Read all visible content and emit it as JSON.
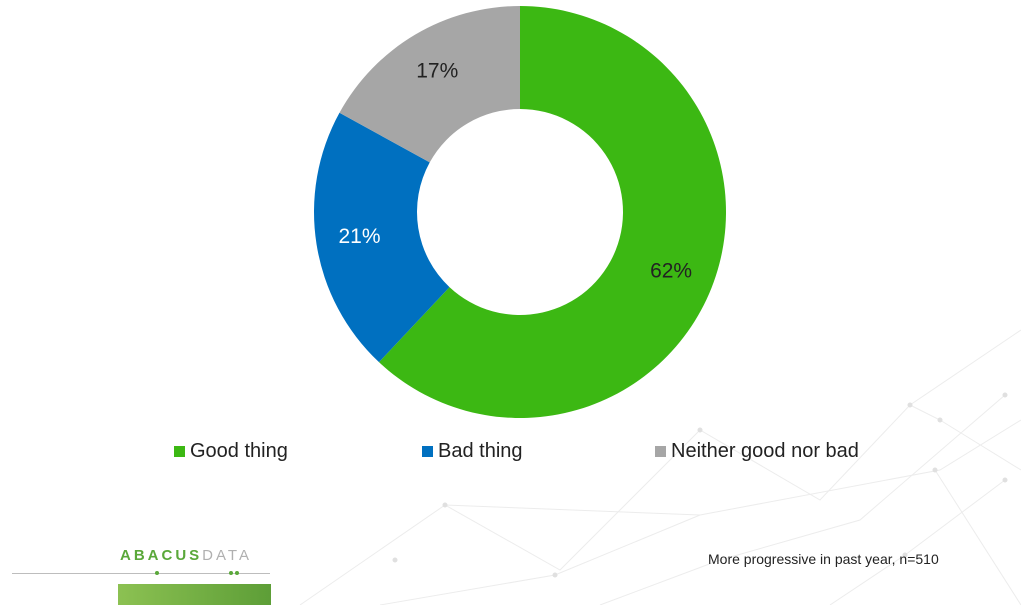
{
  "chart_data": {
    "type": "pie",
    "style": "donut",
    "categories": [
      "Good thing",
      "Bad thing",
      "Neither good nor bad"
    ],
    "values": [
      62,
      21,
      17
    ],
    "labels": [
      "62%",
      "21%",
      "17%"
    ],
    "colors": [
      "#3cb813",
      "#0070c0",
      "#a6a6a6"
    ],
    "label_colors": [
      "#222222",
      "#ffffff",
      "#222222"
    ],
    "legend_position": "bottom"
  },
  "legend": [
    {
      "label": "Good thing",
      "color": "#3cb813"
    },
    {
      "label": "Bad thing",
      "color": "#0070c0"
    },
    {
      "label": "Neither good nor bad",
      "color": "#a6a6a6"
    }
  ],
  "footnote": "More progressive in past year, n=510",
  "logo": {
    "word1": "ABACUS",
    "word2": "DATA"
  }
}
